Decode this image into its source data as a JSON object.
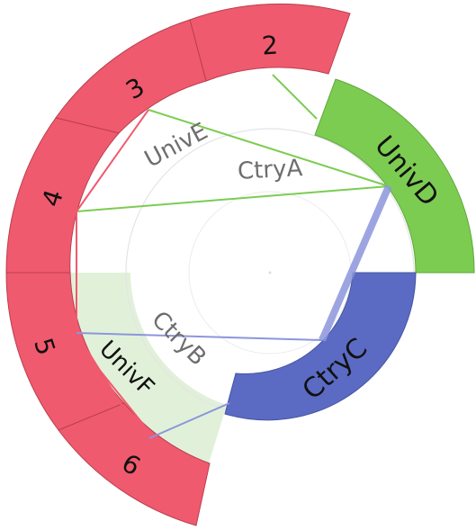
{
  "outer_sectors": [
    {
      "id": "s2",
      "label": "2",
      "color": "#f05a6e"
    },
    {
      "id": "s3",
      "label": "3",
      "color": "#f05a6e"
    },
    {
      "id": "s4",
      "label": "4",
      "color": "#f05a6e"
    },
    {
      "id": "s5",
      "label": "5",
      "color": "#f05a6e"
    },
    {
      "id": "s6",
      "label": "6",
      "color": "#f05a6e"
    }
  ],
  "groups": [
    {
      "id": "univd",
      "label": "UnivD",
      "color": "#7ccc52"
    },
    {
      "id": "ctryc",
      "label": "CtryC",
      "color": "#5b6bc4"
    }
  ],
  "inner_labels": [
    {
      "id": "unive",
      "label": "UnivE"
    },
    {
      "id": "ctrya",
      "label": "CtryA"
    },
    {
      "id": "ctryb",
      "label": "CtryB"
    },
    {
      "id": "univf",
      "label": "UnivF"
    }
  ],
  "colors": {
    "green_link": "#7ccc52",
    "red_link": "#f05a6e",
    "blue_link": "#7f8fd8",
    "light_green_region": "#dcefd2",
    "guide_circle": "#e6e6e6"
  }
}
